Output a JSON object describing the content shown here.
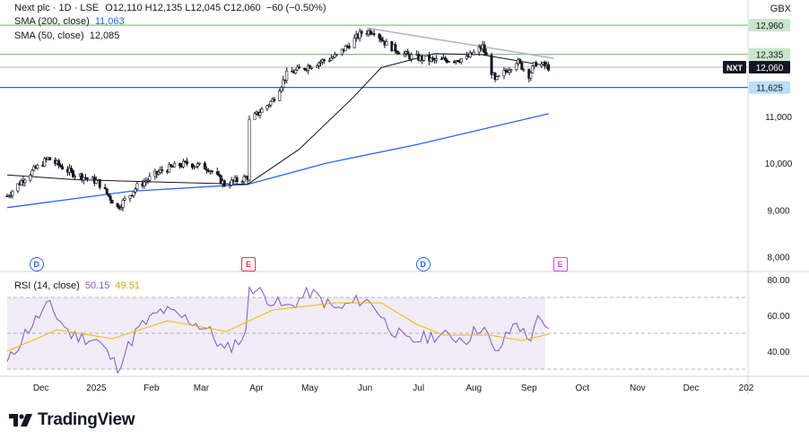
{
  "header": {
    "symbol_line": "Next plc · 1D · LSE",
    "ohlc": {
      "o_label": "O",
      "o": "12,110",
      "h_label": "H",
      "h": "12,135",
      "l_label": "L",
      "l": "12,045",
      "c_label": "C",
      "c": "12,060",
      "change": "−60 (−0.50%)"
    },
    "currency": "GBX"
  },
  "indicators": [
    {
      "label": "SMA (200, close)",
      "value": "11,063",
      "color": "#2962ff"
    },
    {
      "label": "SMA (50, close)",
      "value": "12,085",
      "color": "#131722"
    }
  ],
  "rsi_legend": {
    "label": "RSI (14, close)",
    "value1": "50.15",
    "value1_color": "#7e57c2",
    "value2": "49.51",
    "value2_color": "#f5b800"
  },
  "brand": "TradingView",
  "events": [
    {
      "type": "dividend",
      "glyph": "D",
      "date": "2024-11-28"
    },
    {
      "type": "earnings",
      "glyph": "E",
      "date": "2025-03-27"
    },
    {
      "type": "dividend",
      "glyph": "D",
      "date": "2025-07-03"
    },
    {
      "type": "earnings",
      "glyph": "E",
      "date": "2025-09-18",
      "future": true
    }
  ],
  "chart_data": {
    "type": "candlestick",
    "price_axis": {
      "ylim": [
        7700,
        13500
      ],
      "ticks": [
        8000,
        9000,
        10000,
        11000
      ],
      "tick_labels": [
        "8,000",
        "9,000",
        "10,000",
        "11,000"
      ]
    },
    "time_axis": {
      "xlim": [
        "2024-11-12",
        "2026-01-02"
      ],
      "ticks": [
        "2024-12-01",
        "2025-01-01",
        "2025-02-01",
        "2025-03-01",
        "2025-04-01",
        "2025-05-01",
        "2025-06-01",
        "2025-07-01",
        "2025-08-01",
        "2025-09-01",
        "2025-10-01",
        "2025-11-01",
        "2025-12-01",
        "2026-01-01"
      ],
      "tick_labels": [
        "Dec",
        "2025",
        "Feb",
        "Mar",
        "Apr",
        "May",
        "Jun",
        "Jul",
        "Aug",
        "Sep",
        "Oct",
        "Nov",
        "Dec",
        "202"
      ]
    },
    "close_path": [
      [
        "2024-11-12",
        9300
      ],
      [
        "2024-11-22",
        9700
      ],
      [
        "2024-12-05",
        10100
      ],
      [
        "2024-12-18",
        9800
      ],
      [
        "2025-01-02",
        9600
      ],
      [
        "2025-01-13",
        9050
      ],
      [
        "2025-01-24",
        9500
      ],
      [
        "2025-02-07",
        9850
      ],
      [
        "2025-02-21",
        10000
      ],
      [
        "2025-03-05",
        9900
      ],
      [
        "2025-03-14",
        9550
      ],
      [
        "2025-03-27",
        9700
      ],
      [
        "2025-03-28",
        10900
      ],
      [
        "2025-04-10",
        11350
      ],
      [
        "2025-04-18",
        11900
      ],
      [
        "2025-05-01",
        12100
      ],
      [
        "2025-05-16",
        12300
      ],
      [
        "2025-05-30",
        12800
      ],
      [
        "2025-06-06",
        12850
      ],
      [
        "2025-06-13",
        12550
      ],
      [
        "2025-06-25",
        12300
      ],
      [
        "2025-07-10",
        12200
      ],
      [
        "2025-07-28",
        12250
      ],
      [
        "2025-08-06",
        12500
      ],
      [
        "2025-08-13",
        11750
      ],
      [
        "2025-08-25",
        12200
      ],
      [
        "2025-09-01",
        11900
      ],
      [
        "2025-09-05",
        12150
      ],
      [
        "2025-09-12",
        12060
      ]
    ],
    "sma200": [
      [
        "2024-11-12",
        9050
      ],
      [
        "2025-01-20",
        9400
      ],
      [
        "2025-03-27",
        9550
      ],
      [
        "2025-05-10",
        10000
      ],
      [
        "2025-06-30",
        10400
      ],
      [
        "2025-09-12",
        11063
      ]
    ],
    "sma50": [
      [
        "2024-11-12",
        9750
      ],
      [
        "2024-12-20",
        9650
      ],
      [
        "2025-02-05",
        9600
      ],
      [
        "2025-03-27",
        9550
      ],
      [
        "2025-04-25",
        10300
      ],
      [
        "2025-05-25",
        11400
      ],
      [
        "2025-06-10",
        12050
      ],
      [
        "2025-07-10",
        12350
      ],
      [
        "2025-08-05",
        12330
      ],
      [
        "2025-09-12",
        12085
      ]
    ],
    "trendline": [
      [
        "2025-06-02",
        12900
      ],
      [
        "2025-09-15",
        12250
      ]
    ],
    "levels": [
      {
        "value": 12960,
        "label": "12,960",
        "color": "#81c784",
        "tag_bg": "#c8e6c9",
        "tag_color": "#131722"
      },
      {
        "value": 12335,
        "label": "12,335",
        "color": "#81c784",
        "tag_bg": "#c8e6c9",
        "tag_color": "#131722"
      },
      {
        "value": 11625,
        "label": "11,625",
        "color": "#2962ff",
        "tag_bg": "#bbdefb",
        "tag_color": "#131722"
      }
    ],
    "last_price": {
      "symbol": "NXT",
      "value": 12060,
      "label": "12,060"
    },
    "rsi": {
      "ylim": [
        27,
        84
      ],
      "ticks": [
        40,
        60,
        80
      ],
      "tick_labels": [
        "40.00",
        "60.00",
        "80.00"
      ],
      "band": [
        30,
        70
      ],
      "mid": 50,
      "path": [
        [
          "2024-11-12",
          33
        ],
        [
          "2024-11-22",
          50
        ],
        [
          "2024-12-05",
          66
        ],
        [
          "2024-12-18",
          49
        ],
        [
          "2025-01-02",
          46
        ],
        [
          "2025-01-13",
          31
        ],
        [
          "2025-01-24",
          52
        ],
        [
          "2025-02-07",
          63
        ],
        [
          "2025-02-21",
          58
        ],
        [
          "2025-03-05",
          52
        ],
        [
          "2025-03-14",
          40
        ],
        [
          "2025-03-27",
          50
        ],
        [
          "2025-03-28",
          77
        ],
        [
          "2025-04-10",
          68
        ],
        [
          "2025-04-18",
          64
        ],
        [
          "2025-05-01",
          73
        ],
        [
          "2025-05-16",
          63
        ],
        [
          "2025-05-30",
          69
        ],
        [
          "2025-06-06",
          66
        ],
        [
          "2025-06-13",
          55
        ],
        [
          "2025-06-25",
          45
        ],
        [
          "2025-07-10",
          49
        ],
        [
          "2025-07-28",
          47
        ],
        [
          "2025-08-06",
          55
        ],
        [
          "2025-08-13",
          38
        ],
        [
          "2025-08-25",
          57
        ],
        [
          "2025-09-01",
          45
        ],
        [
          "2025-09-05",
          58
        ],
        [
          "2025-09-12",
          50.15
        ]
      ],
      "signal_path": [
        [
          "2024-11-12",
          40
        ],
        [
          "2024-12-10",
          52
        ],
        [
          "2025-01-10",
          47
        ],
        [
          "2025-02-10",
          57
        ],
        [
          "2025-03-15",
          51
        ],
        [
          "2025-04-10",
          63
        ],
        [
          "2025-05-15",
          67
        ],
        [
          "2025-06-10",
          67
        ],
        [
          "2025-06-30",
          55
        ],
        [
          "2025-07-15",
          49
        ],
        [
          "2025-08-10",
          49
        ],
        [
          "2025-08-28",
          46
        ],
        [
          "2025-09-12",
          49.51
        ]
      ]
    }
  }
}
